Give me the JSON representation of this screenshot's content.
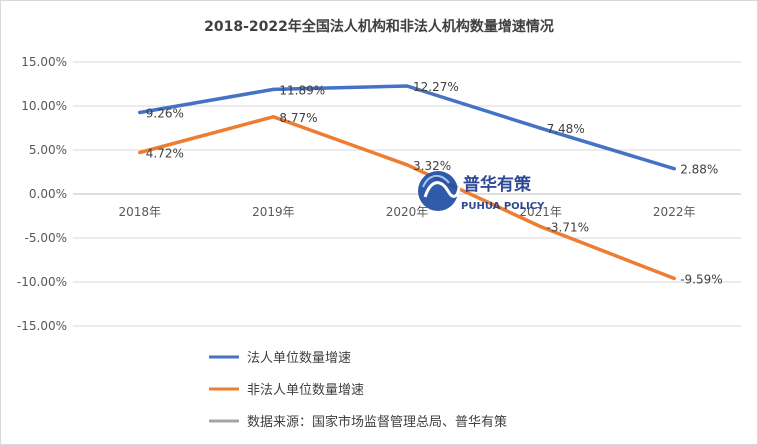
{
  "chart_data": {
    "type": "line",
    "title": "2018-2022年全国法人机构和非法人机构数量增速情况",
    "categories": [
      "2018年",
      "2019年",
      "2020年",
      "2021年",
      "2022年"
    ],
    "ylim": [
      -15,
      15
    ],
    "yticks": [
      15,
      10,
      5,
      0,
      -5,
      -10,
      -15
    ],
    "ytick_labels": [
      "15.00%",
      "10.00%",
      "5.00%",
      "0.00%",
      "-5.00%",
      "-10.00%",
      "-15.00%"
    ],
    "grid": true,
    "series": [
      {
        "name": "法人单位数量增速",
        "color": "#4472c4",
        "values": [
          9.26,
          11.89,
          12.27,
          7.48,
          2.88
        ],
        "labels": [
          "9.26%",
          "11.89%",
          "12.27%",
          "7.48%",
          "2.88%"
        ]
      },
      {
        "name": "非法人单位数量增速",
        "color": "#ed7d31",
        "values": [
          4.72,
          8.77,
          3.32,
          -3.71,
          -9.59
        ],
        "labels": [
          "4.72%",
          "8.77%",
          "3.32%",
          "-3.71%",
          "-9.59%"
        ]
      }
    ],
    "legend": [
      {
        "label": "法人单位数量增速",
        "color": "#4472c4"
      },
      {
        "label": "非法人单位数量增速",
        "color": "#ed7d31"
      },
      {
        "label": "数据来源：国家市场监督管理总局、普华有策",
        "color": "#a5a5a5"
      }
    ],
    "legend_position": "bottom-left"
  },
  "watermark": {
    "name_cn": "普华有策",
    "name_en": "PUHUA POLICY"
  }
}
